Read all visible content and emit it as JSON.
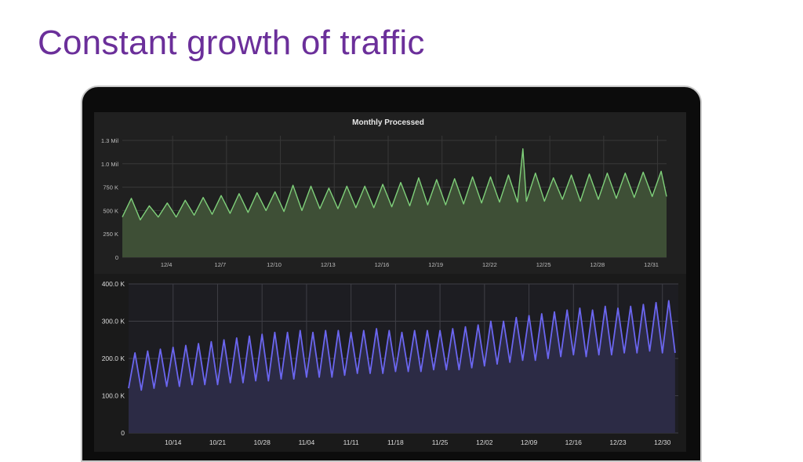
{
  "slide": {
    "title": "Constant growth of traffic"
  },
  "colors": {
    "title": "#6b2f9a",
    "green_line": "#7fd07a",
    "green_fill": "#3e4f36",
    "blue_line": "#6b66f0",
    "blue_fill": "#2c2b45"
  },
  "chart_data": [
    {
      "type": "area",
      "title": "Monthly Processed",
      "yticks": [
        "0",
        "250 K",
        "500 K",
        "750 K",
        "1.0 Mil",
        "1.3 Mil"
      ],
      "ytick_values": [
        0,
        250000,
        500000,
        750000,
        1000000,
        1250000
      ],
      "xticks": [
        "12/4",
        "12/7",
        "12/10",
        "12/13",
        "12/16",
        "12/19",
        "12/22",
        "12/25",
        "12/28",
        "12/31"
      ],
      "xtick_days": [
        4,
        7,
        10,
        13,
        16,
        19,
        22,
        25,
        28,
        31
      ],
      "xlim_days": [
        1.2,
        31.5
      ],
      "ylim": [
        0,
        1300000
      ],
      "grid": true,
      "series": [
        {
          "x_days": [
            1.2,
            1.7,
            2.2,
            2.7,
            3.2,
            3.7,
            4.2,
            4.7,
            5.2,
            5.7,
            6.2,
            6.7,
            7.2,
            7.7,
            8.2,
            8.7,
            9.2,
            9.7,
            10.2,
            10.7,
            11.2,
            11.7,
            12.2,
            12.7,
            13.2,
            13.7,
            14.2,
            14.7,
            15.2,
            15.7,
            16.2,
            16.7,
            17.2,
            17.7,
            18.2,
            18.7,
            19.2,
            19.7,
            20.2,
            20.7,
            21.2,
            21.7,
            22.2,
            22.7,
            23.2,
            23.5,
            23.7,
            24.2,
            24.7,
            25.2,
            25.7,
            26.2,
            26.7,
            27.2,
            27.7,
            28.2,
            28.7,
            29.2,
            29.7,
            30.2,
            30.7,
            31.2,
            31.5
          ],
          "values": [
            430000,
            630000,
            400000,
            550000,
            430000,
            580000,
            430000,
            610000,
            450000,
            640000,
            460000,
            660000,
            470000,
            680000,
            480000,
            690000,
            500000,
            700000,
            490000,
            770000,
            500000,
            760000,
            520000,
            740000,
            520000,
            760000,
            530000,
            760000,
            530000,
            780000,
            540000,
            800000,
            550000,
            850000,
            560000,
            830000,
            560000,
            840000,
            570000,
            860000,
            580000,
            860000,
            590000,
            880000,
            590000,
            1160000,
            600000,
            900000,
            600000,
            850000,
            620000,
            880000,
            600000,
            890000,
            620000,
            900000,
            630000,
            900000,
            640000,
            910000,
            650000,
            920000,
            650000
          ]
        }
      ]
    },
    {
      "type": "area",
      "yticks": [
        "0",
        "100.0 K",
        "200.0 K",
        "300.0 K",
        "400.0 K"
      ],
      "ytick_values": [
        0,
        100000,
        200000,
        300000,
        400000
      ],
      "xticks": [
        "10/14",
        "10/21",
        "10/28",
        "11/04",
        "11/11",
        "11/18",
        "11/25",
        "12/02",
        "12/09",
        "12/16",
        "12/23",
        "12/30"
      ],
      "xtick_days": [
        14,
        21,
        28,
        35,
        42,
        49,
        56,
        63,
        70,
        77,
        84,
        91
      ],
      "xlim_days": [
        7,
        93.5
      ],
      "ylim": [
        0,
        400000
      ],
      "grid": true,
      "series": [
        {
          "x_days": [
            7,
            8,
            9,
            10,
            11,
            12,
            13,
            14,
            15,
            16,
            17,
            18,
            19,
            20,
            21,
            22,
            23,
            24,
            25,
            26,
            27,
            28,
            29,
            30,
            31,
            32,
            33,
            34,
            35,
            36,
            37,
            38,
            39,
            40,
            41,
            42,
            43,
            44,
            45,
            46,
            47,
            48,
            49,
            50,
            51,
            52,
            53,
            54,
            55,
            56,
            57,
            58,
            59,
            60,
            61,
            62,
            63,
            64,
            65,
            66,
            67,
            68,
            69,
            70,
            71,
            72,
            73,
            74,
            75,
            76,
            77,
            78,
            79,
            80,
            81,
            82,
            83,
            84,
            85,
            86,
            87,
            88,
            89,
            90,
            91,
            92,
            93
          ],
          "values": [
            120000,
            215000,
            115000,
            220000,
            120000,
            225000,
            125000,
            230000,
            125000,
            235000,
            130000,
            240000,
            130000,
            245000,
            130000,
            250000,
            135000,
            255000,
            135000,
            260000,
            140000,
            265000,
            140000,
            270000,
            145000,
            270000,
            145000,
            275000,
            150000,
            270000,
            150000,
            275000,
            150000,
            275000,
            155000,
            270000,
            160000,
            275000,
            160000,
            280000,
            160000,
            275000,
            165000,
            270000,
            165000,
            275000,
            165000,
            275000,
            170000,
            275000,
            170000,
            280000,
            170000,
            285000,
            175000,
            290000,
            180000,
            300000,
            185000,
            300000,
            190000,
            310000,
            195000,
            315000,
            195000,
            320000,
            200000,
            325000,
            205000,
            330000,
            210000,
            335000,
            205000,
            330000,
            210000,
            340000,
            210000,
            335000,
            215000,
            340000,
            215000,
            345000,
            220000,
            350000,
            215000,
            355000,
            215000
          ]
        }
      ]
    }
  ]
}
